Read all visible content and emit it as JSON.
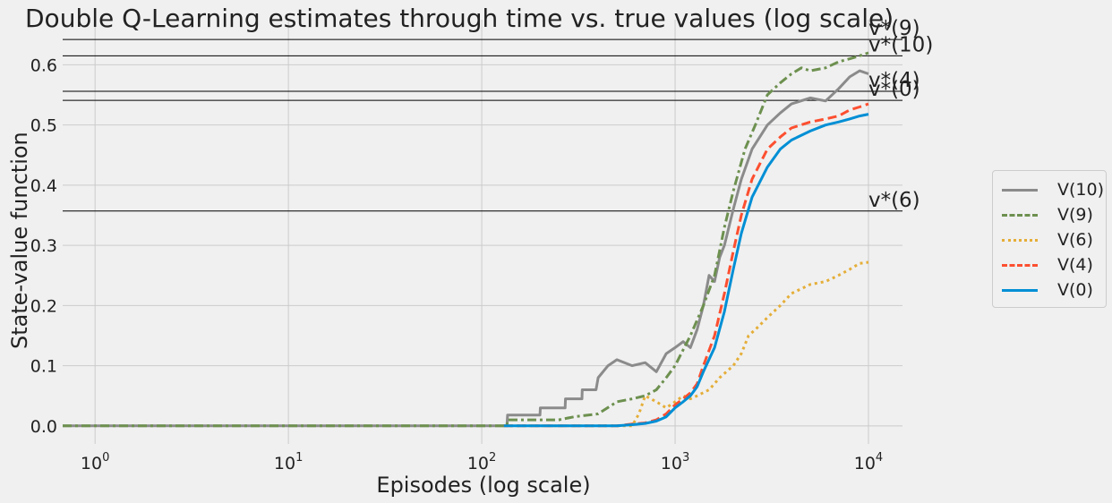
{
  "chart_data": {
    "type": "line",
    "title": "Double Q-Learning estimates through time vs. true values (log scale)",
    "xlabel": "Episodes (log scale)",
    "ylabel": "State-value function",
    "xscale": "log",
    "xlim": [
      0.68,
      15000
    ],
    "ylim": [
      -0.03,
      0.675
    ],
    "xticks": [
      {
        "value": 1,
        "base": "10",
        "exp": "0"
      },
      {
        "value": 10,
        "base": "10",
        "exp": "1"
      },
      {
        "value": 100,
        "base": "10",
        "exp": "2"
      },
      {
        "value": 1000,
        "base": "10",
        "exp": "3"
      },
      {
        "value": 10000,
        "base": "10",
        "exp": "4"
      }
    ],
    "yticks": [
      {
        "value": 0.0,
        "label": "0.0"
      },
      {
        "value": 0.1,
        "label": "0.1"
      },
      {
        "value": 0.2,
        "label": "0.2"
      },
      {
        "value": 0.3,
        "label": "0.3"
      },
      {
        "value": 0.4,
        "label": "0.4"
      },
      {
        "value": 0.5,
        "label": "0.5"
      },
      {
        "value": 0.6,
        "label": "0.6"
      }
    ],
    "grid": true,
    "legend_position": "right",
    "true_values": [
      {
        "label": "v*(9)",
        "value": 0.642
      },
      {
        "label": "v*(10)",
        "value": 0.615
      },
      {
        "label": "v*(4)",
        "value": 0.556
      },
      {
        "label": "v*(0)",
        "value": 0.541
      },
      {
        "label": "v*(6)",
        "value": 0.357
      }
    ],
    "series": [
      {
        "name": "V(10)",
        "color": "#8b8b8b",
        "dash": "solid",
        "points": [
          [
            0.68,
            0
          ],
          [
            135,
            0
          ],
          [
            136,
            0.018
          ],
          [
            200,
            0.018
          ],
          [
            201,
            0.03
          ],
          [
            270,
            0.03
          ],
          [
            271,
            0.045
          ],
          [
            330,
            0.045
          ],
          [
            331,
            0.06
          ],
          [
            390,
            0.06
          ],
          [
            400,
            0.08
          ],
          [
            450,
            0.1
          ],
          [
            500,
            0.11
          ],
          [
            600,
            0.1
          ],
          [
            700,
            0.105
          ],
          [
            800,
            0.09
          ],
          [
            900,
            0.12
          ],
          [
            1000,
            0.13
          ],
          [
            1100,
            0.14
          ],
          [
            1200,
            0.13
          ],
          [
            1300,
            0.16
          ],
          [
            1400,
            0.2
          ],
          [
            1500,
            0.25
          ],
          [
            1600,
            0.24
          ],
          [
            1700,
            0.28
          ],
          [
            1800,
            0.3
          ],
          [
            2000,
            0.36
          ],
          [
            2200,
            0.41
          ],
          [
            2500,
            0.46
          ],
          [
            3000,
            0.5
          ],
          [
            3500,
            0.52
          ],
          [
            4000,
            0.535
          ],
          [
            5000,
            0.545
          ],
          [
            6000,
            0.54
          ],
          [
            7000,
            0.56
          ],
          [
            8000,
            0.58
          ],
          [
            9000,
            0.59
          ],
          [
            10000,
            0.585
          ]
        ]
      },
      {
        "name": "V(9)",
        "color": "#6d904f",
        "dash": "dashdot",
        "points": [
          [
            0.68,
            0
          ],
          [
            135,
            0
          ],
          [
            136,
            0.01
          ],
          [
            250,
            0.01
          ],
          [
            300,
            0.015
          ],
          [
            400,
            0.02
          ],
          [
            500,
            0.04
          ],
          [
            600,
            0.045
          ],
          [
            700,
            0.05
          ],
          [
            800,
            0.06
          ],
          [
            900,
            0.08
          ],
          [
            1000,
            0.1
          ],
          [
            1200,
            0.15
          ],
          [
            1400,
            0.2
          ],
          [
            1600,
            0.25
          ],
          [
            1800,
            0.33
          ],
          [
            2000,
            0.39
          ],
          [
            2300,
            0.46
          ],
          [
            2600,
            0.5
          ],
          [
            3000,
            0.55
          ],
          [
            3500,
            0.57
          ],
          [
            4000,
            0.585
          ],
          [
            4500,
            0.595
          ],
          [
            5000,
            0.59
          ],
          [
            6000,
            0.595
          ],
          [
            7000,
            0.605
          ],
          [
            8000,
            0.61
          ],
          [
            9000,
            0.615
          ],
          [
            10000,
            0.62
          ]
        ]
      },
      {
        "name": "V(6)",
        "color": "#e5ae38",
        "dash": "dotted",
        "points": [
          [
            130,
            0
          ],
          [
            600,
            0
          ],
          [
            650,
            0.02
          ],
          [
            700,
            0.05
          ],
          [
            800,
            0.04
          ],
          [
            900,
            0.03
          ],
          [
            1000,
            0.04
          ],
          [
            1100,
            0.05
          ],
          [
            1200,
            0.045
          ],
          [
            1300,
            0.05
          ],
          [
            1500,
            0.06
          ],
          [
            1700,
            0.08
          ],
          [
            2000,
            0.1
          ],
          [
            2200,
            0.12
          ],
          [
            2400,
            0.15
          ],
          [
            2600,
            0.16
          ],
          [
            3000,
            0.18
          ],
          [
            3500,
            0.2
          ],
          [
            4000,
            0.22
          ],
          [
            5000,
            0.235
          ],
          [
            6000,
            0.24
          ],
          [
            7000,
            0.25
          ],
          [
            8000,
            0.26
          ],
          [
            9000,
            0.27
          ],
          [
            10000,
            0.272
          ]
        ]
      },
      {
        "name": "V(4)",
        "color": "#fc4f30",
        "dash": "dashed",
        "points": [
          [
            130,
            0
          ],
          [
            500,
            0
          ],
          [
            600,
            0.003
          ],
          [
            700,
            0.005
          ],
          [
            800,
            0.01
          ],
          [
            900,
            0.02
          ],
          [
            1000,
            0.035
          ],
          [
            1100,
            0.045
          ],
          [
            1200,
            0.055
          ],
          [
            1300,
            0.07
          ],
          [
            1400,
            0.1
          ],
          [
            1600,
            0.15
          ],
          [
            1800,
            0.22
          ],
          [
            2000,
            0.29
          ],
          [
            2200,
            0.35
          ],
          [
            2500,
            0.41
          ],
          [
            3000,
            0.46
          ],
          [
            3500,
            0.48
          ],
          [
            4000,
            0.495
          ],
          [
            5000,
            0.505
          ],
          [
            6000,
            0.51
          ],
          [
            7000,
            0.515
          ],
          [
            8000,
            0.525
          ],
          [
            9000,
            0.53
          ],
          [
            10000,
            0.535
          ]
        ]
      },
      {
        "name": "V(0)",
        "color": "#008fd5",
        "dash": "solid",
        "points": [
          [
            130,
            0
          ],
          [
            500,
            0
          ],
          [
            600,
            0.002
          ],
          [
            700,
            0.004
          ],
          [
            800,
            0.008
          ],
          [
            900,
            0.015
          ],
          [
            1000,
            0.03
          ],
          [
            1100,
            0.04
          ],
          [
            1200,
            0.05
          ],
          [
            1300,
            0.065
          ],
          [
            1400,
            0.09
          ],
          [
            1600,
            0.13
          ],
          [
            1800,
            0.19
          ],
          [
            2000,
            0.26
          ],
          [
            2200,
            0.32
          ],
          [
            2500,
            0.38
          ],
          [
            3000,
            0.43
          ],
          [
            3500,
            0.46
          ],
          [
            4000,
            0.475
          ],
          [
            5000,
            0.49
          ],
          [
            6000,
            0.5
          ],
          [
            7000,
            0.505
          ],
          [
            8000,
            0.51
          ],
          [
            9000,
            0.515
          ],
          [
            10000,
            0.518
          ]
        ]
      }
    ]
  }
}
